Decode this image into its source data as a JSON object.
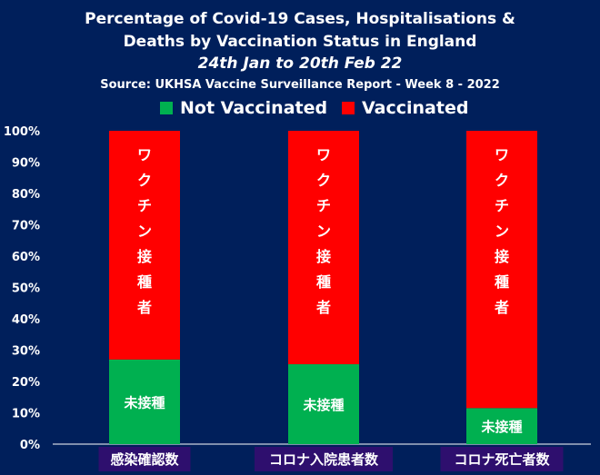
{
  "chart_data": {
    "type": "bar",
    "stacked": true,
    "title_lines": [
      "Percentage of Covid-19 Cases, Hospitalisations &",
      "Deaths by Vaccination Status in England"
    ],
    "subtitle": "24th Jan to 20th Feb 22",
    "source": "Source: UKHSA Vaccine Surveillance Report - Week 8 - 2022",
    "categories": [
      "感染確認数",
      "コロナ入院患者数",
      "コロナ死亡者数"
    ],
    "series": [
      {
        "name": "Not Vaccinated",
        "color": "#00b050",
        "values": [
          27,
          25.5,
          11.5
        ],
        "bar_label": "未接種"
      },
      {
        "name": "Vaccinated",
        "color": "#ff0000",
        "values": [
          73,
          74.5,
          88.5
        ],
        "bar_label_chars": [
          "ワ",
          "ク",
          "チ",
          "ン",
          "接",
          "種",
          "者"
        ]
      }
    ],
    "ylim": [
      0,
      100
    ],
    "yticks": [
      "0%",
      "10%",
      "20%",
      "30%",
      "40%",
      "50%",
      "60%",
      "70%",
      "80%",
      "90%",
      "100%"
    ],
    "legend_position": "top",
    "grid": false,
    "background": "#001f5b",
    "category_label_bg": "#2e0f6e"
  }
}
